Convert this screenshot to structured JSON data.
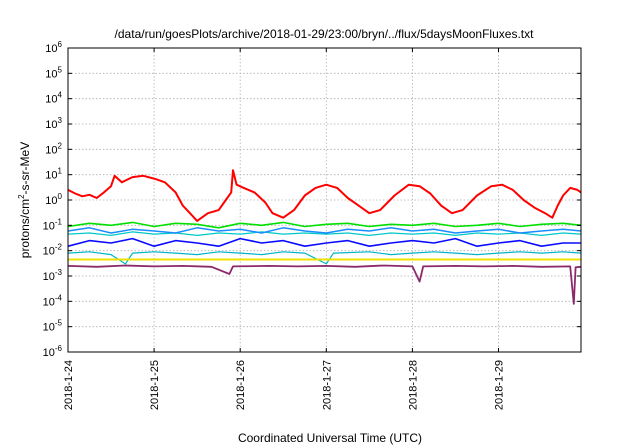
{
  "chart_data": {
    "type": "line",
    "title": "/data/run/goesPlots/archive/2018-01-29/23:00/bryn/../flux/5daysMoonFluxes.txt",
    "xlabel": "Coordinated Universal Time (UTC)",
    "ylabel_parts": [
      "protons/cm",
      "2",
      "-s-sr-MeV"
    ],
    "y_scale": "log",
    "ylim": [
      1e-06,
      1000000.0
    ],
    "y_ticks": [
      {
        "base": "10",
        "exp": "-6",
        "value": 1e-06
      },
      {
        "base": "10",
        "exp": "-5",
        "value": 1e-05
      },
      {
        "base": "10",
        "exp": "-4",
        "value": 0.0001
      },
      {
        "base": "10",
        "exp": "-3",
        "value": 0.001
      },
      {
        "base": "10",
        "exp": "-2",
        "value": 0.01
      },
      {
        "base": "10",
        "exp": "-1",
        "value": 0.1
      },
      {
        "base": "10",
        "exp": "0",
        "value": 1
      },
      {
        "base": "10",
        "exp": "1",
        "value": 10
      },
      {
        "base": "10",
        "exp": "2",
        "value": 100
      },
      {
        "base": "10",
        "exp": "3",
        "value": 1000
      },
      {
        "base": "10",
        "exp": "4",
        "value": 10000
      },
      {
        "base": "10",
        "exp": "5",
        "value": 100000
      },
      {
        "base": "10",
        "exp": "6",
        "value": 1000000
      }
    ],
    "xlim": [
      "2018-01-24T00:00",
      "2018-01-29T23:00"
    ],
    "x_ticks": [
      "2018-1-24",
      "2018-1-25",
      "2018-1-26",
      "2018-1-27",
      "2018-1-28",
      "2018-1-29"
    ],
    "grid": true,
    "series": [
      {
        "color": "#ff0000",
        "width": 2,
        "values": [
          [
            "2018-01-24T00:00",
            2.5
          ],
          [
            "2018-01-24T02:00",
            1.8
          ],
          [
            "2018-01-24T04:00",
            1.4
          ],
          [
            "2018-01-24T06:00",
            1.6
          ],
          [
            "2018-01-24T08:00",
            1.2
          ],
          [
            "2018-01-24T10:00",
            2.0
          ],
          [
            "2018-01-24T12:00",
            3.5
          ],
          [
            "2018-01-24T13:00",
            9.0
          ],
          [
            "2018-01-24T15:00",
            5.0
          ],
          [
            "2018-01-24T18:00",
            8.0
          ],
          [
            "2018-01-24T21:00",
            9.0
          ],
          [
            "2018-01-25T00:00",
            7.0
          ],
          [
            "2018-01-25T03:00",
            5.0
          ],
          [
            "2018-01-25T06:00",
            2.0
          ],
          [
            "2018-01-25T08:00",
            0.6
          ],
          [
            "2018-01-25T10:00",
            0.3
          ],
          [
            "2018-01-25T12:00",
            0.15
          ],
          [
            "2018-01-25T15:00",
            0.3
          ],
          [
            "2018-01-25T18:00",
            0.4
          ],
          [
            "2018-01-25T20:00",
            1.0
          ],
          [
            "2018-01-25T21:30",
            2.0
          ],
          [
            "2018-01-25T22:00",
            15.0
          ],
          [
            "2018-01-25T23:00",
            4.0
          ],
          [
            "2018-01-26T01:00",
            3.0
          ],
          [
            "2018-01-26T04:00",
            2.0
          ],
          [
            "2018-01-26T07:00",
            0.8
          ],
          [
            "2018-01-26T09:00",
            0.3
          ],
          [
            "2018-01-26T12:00",
            0.2
          ],
          [
            "2018-01-26T15:00",
            0.4
          ],
          [
            "2018-01-26T18:00",
            1.5
          ],
          [
            "2018-01-26T21:00",
            3.0
          ],
          [
            "2018-01-27T00:00",
            4.0
          ],
          [
            "2018-01-27T03:00",
            3.0
          ],
          [
            "2018-01-27T06:00",
            1.2
          ],
          [
            "2018-01-27T09:00",
            0.6
          ],
          [
            "2018-01-27T12:00",
            0.3
          ],
          [
            "2018-01-27T15:00",
            0.4
          ],
          [
            "2018-01-27T19:00",
            1.5
          ],
          [
            "2018-01-27T23:00",
            4.0
          ],
          [
            "2018-01-28T02:00",
            3.5
          ],
          [
            "2018-01-28T05:00",
            1.8
          ],
          [
            "2018-01-28T08:00",
            0.6
          ],
          [
            "2018-01-28T11:00",
            0.3
          ],
          [
            "2018-01-28T14:00",
            0.4
          ],
          [
            "2018-01-28T18:00",
            1.5
          ],
          [
            "2018-01-28T22:00",
            3.5
          ],
          [
            "2018-01-29T01:00",
            4.0
          ],
          [
            "2018-01-29T04:00",
            2.5
          ],
          [
            "2018-01-29T07:00",
            1.0
          ],
          [
            "2018-01-29T10:00",
            0.5
          ],
          [
            "2018-01-29T13:00",
            0.3
          ],
          [
            "2018-01-29T15:00",
            0.2
          ],
          [
            "2018-01-29T16:30",
            0.6
          ],
          [
            "2018-01-29T18:00",
            1.5
          ],
          [
            "2018-01-29T20:00",
            3.0
          ],
          [
            "2018-01-29T22:00",
            2.5
          ],
          [
            "2018-01-29T23:00",
            2.0
          ]
        ]
      },
      {
        "color": "#00e000",
        "width": 1.6,
        "values": [
          [
            "2018-01-24T00:00",
            0.09
          ],
          [
            "2018-01-24T06:00",
            0.12
          ],
          [
            "2018-01-24T12:00",
            0.1
          ],
          [
            "2018-01-24T18:00",
            0.13
          ],
          [
            "2018-01-25T00:00",
            0.09
          ],
          [
            "2018-01-25T06:00",
            0.12
          ],
          [
            "2018-01-25T12:00",
            0.11
          ],
          [
            "2018-01-25T18:00",
            0.08
          ],
          [
            "2018-01-26T00:00",
            0.12
          ],
          [
            "2018-01-26T06:00",
            0.1
          ],
          [
            "2018-01-26T12:00",
            0.13
          ],
          [
            "2018-01-26T18:00",
            0.09
          ],
          [
            "2018-01-27T00:00",
            0.11
          ],
          [
            "2018-01-27T06:00",
            0.12
          ],
          [
            "2018-01-27T12:00",
            0.09
          ],
          [
            "2018-01-27T18:00",
            0.11
          ],
          [
            "2018-01-28T00:00",
            0.1
          ],
          [
            "2018-01-28T06:00",
            0.12
          ],
          [
            "2018-01-28T12:00",
            0.09
          ],
          [
            "2018-01-28T18:00",
            0.1
          ],
          [
            "2018-01-29T00:00",
            0.12
          ],
          [
            "2018-01-29T06:00",
            0.09
          ],
          [
            "2018-01-29T12:00",
            0.11
          ],
          [
            "2018-01-29T18:00",
            0.12
          ],
          [
            "2018-01-29T23:00",
            0.1
          ]
        ]
      },
      {
        "color": "#00c8c8",
        "width": 1.2,
        "values": [
          [
            "2018-01-24T00:00",
            0.045
          ],
          [
            "2018-01-24T06:00",
            0.05
          ],
          [
            "2018-01-24T12:00",
            0.04
          ],
          [
            "2018-01-24T18:00",
            0.055
          ],
          [
            "2018-01-25T00:00",
            0.045
          ],
          [
            "2018-01-25T06:00",
            0.05
          ],
          [
            "2018-01-25T12:00",
            0.04
          ],
          [
            "2018-01-25T18:00",
            0.05
          ],
          [
            "2018-01-26T00:00",
            0.045
          ],
          [
            "2018-01-26T06:00",
            0.055
          ],
          [
            "2018-01-26T12:00",
            0.045
          ],
          [
            "2018-01-26T18:00",
            0.05
          ],
          [
            "2018-01-27T00:00",
            0.045
          ],
          [
            "2018-01-27T06:00",
            0.05
          ],
          [
            "2018-01-27T12:00",
            0.04
          ],
          [
            "2018-01-27T18:00",
            0.05
          ],
          [
            "2018-01-28T00:00",
            0.045
          ],
          [
            "2018-01-28T06:00",
            0.05
          ],
          [
            "2018-01-28T12:00",
            0.04
          ],
          [
            "2018-01-28T18:00",
            0.05
          ],
          [
            "2018-01-29T00:00",
            0.045
          ],
          [
            "2018-01-29T06:00",
            0.05
          ],
          [
            "2018-01-29T12:00",
            0.04
          ],
          [
            "2018-01-29T18:00",
            0.05
          ],
          [
            "2018-01-29T23:00",
            0.045
          ]
        ]
      },
      {
        "color": "#1a8cff",
        "width": 1.5,
        "values": [
          [
            "2018-01-24T00:00",
            0.06
          ],
          [
            "2018-01-24T06:00",
            0.08
          ],
          [
            "2018-01-24T12:00",
            0.05
          ],
          [
            "2018-01-24T18:00",
            0.07
          ],
          [
            "2018-01-25T00:00",
            0.06
          ],
          [
            "2018-01-25T06:00",
            0.05
          ],
          [
            "2018-01-25T12:00",
            0.08
          ],
          [
            "2018-01-25T18:00",
            0.06
          ],
          [
            "2018-01-26T00:00",
            0.07
          ],
          [
            "2018-01-26T06:00",
            0.05
          ],
          [
            "2018-01-26T12:00",
            0.08
          ],
          [
            "2018-01-26T18:00",
            0.06
          ],
          [
            "2018-01-27T00:00",
            0.05
          ],
          [
            "2018-01-27T06:00",
            0.07
          ],
          [
            "2018-01-27T12:00",
            0.06
          ],
          [
            "2018-01-27T18:00",
            0.08
          ],
          [
            "2018-01-28T00:00",
            0.06
          ],
          [
            "2018-01-28T06:00",
            0.07
          ],
          [
            "2018-01-28T12:00",
            0.05
          ],
          [
            "2018-01-28T18:00",
            0.06
          ],
          [
            "2018-01-29T00:00",
            0.07
          ],
          [
            "2018-01-29T06:00",
            0.05
          ],
          [
            "2018-01-29T12:00",
            0.06
          ],
          [
            "2018-01-29T18:00",
            0.07
          ],
          [
            "2018-01-29T23:00",
            0.06
          ]
        ]
      },
      {
        "color": "#0a0aff",
        "width": 1.6,
        "values": [
          [
            "2018-01-24T00:00",
            0.015
          ],
          [
            "2018-01-24T06:00",
            0.025
          ],
          [
            "2018-01-24T12:00",
            0.02
          ],
          [
            "2018-01-24T18:00",
            0.03
          ],
          [
            "2018-01-25T00:00",
            0.015
          ],
          [
            "2018-01-25T06:00",
            0.025
          ],
          [
            "2018-01-25T12:00",
            0.02
          ],
          [
            "2018-01-25T18:00",
            0.015
          ],
          [
            "2018-01-26T00:00",
            0.03
          ],
          [
            "2018-01-26T06:00",
            0.02
          ],
          [
            "2018-01-26T12:00",
            0.025
          ],
          [
            "2018-01-26T18:00",
            0.015
          ],
          [
            "2018-01-27T00:00",
            0.02
          ],
          [
            "2018-01-27T06:00",
            0.025
          ],
          [
            "2018-01-27T12:00",
            0.015
          ],
          [
            "2018-01-27T18:00",
            0.02
          ],
          [
            "2018-01-28T00:00",
            0.025
          ],
          [
            "2018-01-28T06:00",
            0.02
          ],
          [
            "2018-01-28T12:00",
            0.03
          ],
          [
            "2018-01-28T18:00",
            0.015
          ],
          [
            "2018-01-29T00:00",
            0.02
          ],
          [
            "2018-01-29T06:00",
            0.025
          ],
          [
            "2018-01-29T12:00",
            0.015
          ],
          [
            "2018-01-29T18:00",
            0.02
          ],
          [
            "2018-01-29T23:00",
            0.02
          ]
        ]
      },
      {
        "color": "#00b4c8",
        "width": 1.2,
        "values": [
          [
            "2018-01-24T00:00",
            0.008
          ],
          [
            "2018-01-24T06:00",
            0.009
          ],
          [
            "2018-01-24T12:00",
            0.007
          ],
          [
            "2018-01-24T16:00",
            0.003
          ],
          [
            "2018-01-24T18:00",
            0.008
          ],
          [
            "2018-01-25T00:00",
            0.009
          ],
          [
            "2018-01-25T06:00",
            0.008
          ],
          [
            "2018-01-25T12:00",
            0.007
          ],
          [
            "2018-01-25T18:00",
            0.009
          ],
          [
            "2018-01-26T00:00",
            0.008
          ],
          [
            "2018-01-26T06:00",
            0.007
          ],
          [
            "2018-01-26T12:00",
            0.009
          ],
          [
            "2018-01-26T18:00",
            0.008
          ],
          [
            "2018-01-27T00:00",
            0.003
          ],
          [
            "2018-01-27T02:00",
            0.008
          ],
          [
            "2018-01-27T12:00",
            0.009
          ],
          [
            "2018-01-27T18:00",
            0.007
          ],
          [
            "2018-01-28T00:00",
            0.008
          ],
          [
            "2018-01-28T06:00",
            0.009
          ],
          [
            "2018-01-28T12:00",
            0.008
          ],
          [
            "2018-01-28T18:00",
            0.007
          ],
          [
            "2018-01-29T00:00",
            0.008
          ],
          [
            "2018-01-29T06:00",
            0.009
          ],
          [
            "2018-01-29T12:00",
            0.008
          ],
          [
            "2018-01-29T18:00",
            0.009
          ],
          [
            "2018-01-29T23:00",
            0.008
          ]
        ]
      },
      {
        "color": "#f0e000",
        "width": 2,
        "values": [
          [
            "2018-01-24T00:00",
            0.0045
          ],
          [
            "2018-01-25T00:00",
            0.0045
          ],
          [
            "2018-01-26T00:00",
            0.0045
          ],
          [
            "2018-01-27T00:00",
            0.0045
          ],
          [
            "2018-01-28T00:00",
            0.0045
          ],
          [
            "2018-01-29T00:00",
            0.0045
          ],
          [
            "2018-01-29T23:00",
            0.0045
          ]
        ]
      },
      {
        "color": "#8b2a6b",
        "width": 1.8,
        "values": [
          [
            "2018-01-24T00:00",
            0.0025
          ],
          [
            "2018-01-24T08:00",
            0.0023
          ],
          [
            "2018-01-24T16:00",
            0.0026
          ],
          [
            "2018-01-25T00:00",
            0.0024
          ],
          [
            "2018-01-25T08:00",
            0.0025
          ],
          [
            "2018-01-25T16:00",
            0.0023
          ],
          [
            "2018-01-25T21:00",
            0.0012
          ],
          [
            "2018-01-25T22:00",
            0.0024
          ],
          [
            "2018-01-26T08:00",
            0.0025
          ],
          [
            "2018-01-26T16:00",
            0.0024
          ],
          [
            "2018-01-27T00:00",
            0.0025
          ],
          [
            "2018-01-27T08:00",
            0.0023
          ],
          [
            "2018-01-27T16:00",
            0.0026
          ],
          [
            "2018-01-28T00:00",
            0.0024
          ],
          [
            "2018-01-28T02:00",
            0.0006
          ],
          [
            "2018-01-28T03:00",
            0.0024
          ],
          [
            "2018-01-28T12:00",
            0.0025
          ],
          [
            "2018-01-28T20:00",
            0.0024
          ],
          [
            "2018-01-29T04:00",
            0.0025
          ],
          [
            "2018-01-29T12:00",
            0.0023
          ],
          [
            "2018-01-29T20:00",
            0.0024
          ],
          [
            "2018-01-29T21:00",
            8e-05
          ],
          [
            "2018-01-29T21:30",
            0.0022
          ],
          [
            "2018-01-29T23:00",
            0.0023
          ]
        ]
      }
    ]
  }
}
